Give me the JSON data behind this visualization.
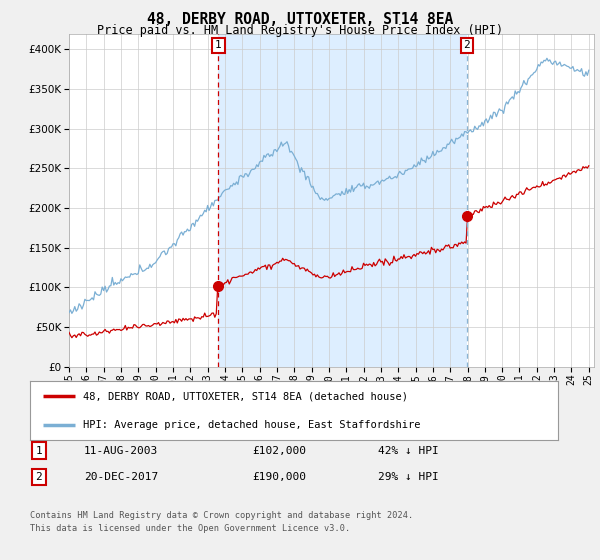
{
  "title": "48, DERBY ROAD, UTTOXETER, ST14 8EA",
  "subtitle": "Price paid vs. HM Land Registry's House Price Index (HPI)",
  "ylim": [
    0,
    420000
  ],
  "yticks": [
    0,
    50000,
    100000,
    150000,
    200000,
    250000,
    300000,
    350000,
    400000
  ],
  "year_start": 1995,
  "year_end": 2025,
  "sale1_date": "11-AUG-2003",
  "sale1_price": 102000,
  "sale1_pct": "42%",
  "sale1_year": 2003.62,
  "sale2_date": "20-DEC-2017",
  "sale2_price": 190000,
  "sale2_pct": "29%",
  "sale2_year": 2017.97,
  "legend_label1": "48, DERBY ROAD, UTTOXETER, ST14 8EA (detached house)",
  "legend_label2": "HPI: Average price, detached house, East Staffordshire",
  "footnote": "Contains HM Land Registry data © Crown copyright and database right 2024.\nThis data is licensed under the Open Government Licence v3.0.",
  "line_color_red": "#cc0000",
  "line_color_blue": "#7bafd4",
  "vline1_color": "#cc0000",
  "vline2_color": "#8ab4d4",
  "shade_color": "#ddeeff",
  "background_color": "#f0f0f0",
  "plot_bg_color": "#ffffff",
  "grid_color": "#cccccc"
}
